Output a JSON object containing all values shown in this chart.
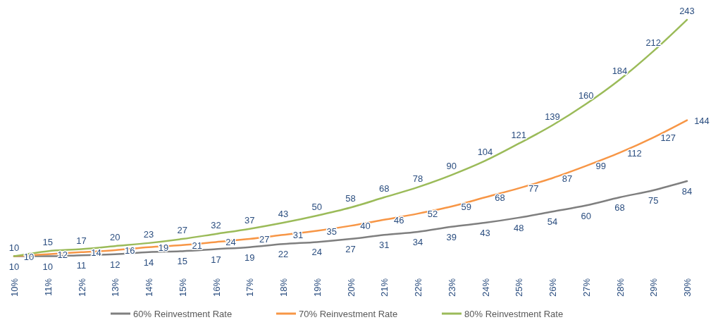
{
  "chart_data": {
    "type": "line",
    "categories": [
      "10%",
      "11%",
      "12%",
      "13%",
      "14%",
      "15%",
      "16%",
      "17%",
      "18%",
      "19%",
      "20%",
      "21%",
      "22%",
      "23%",
      "24%",
      "25%",
      "26%",
      "27%",
      "28%",
      "29%",
      "30%"
    ],
    "series": [
      {
        "name": "60% Reinvestment Rate",
        "color": "#7f7f7f",
        "values": [
          10,
          10,
          11,
          12,
          14,
          15,
          17,
          19,
          22,
          24,
          27,
          31,
          34,
          39,
          43,
          48,
          54,
          60,
          68,
          75,
          84
        ]
      },
      {
        "name": "70% Reinvestment Rate",
        "color": "#f79646",
        "values": [
          10,
          12,
          14,
          16,
          19,
          21,
          24,
          27,
          31,
          35,
          40,
          46,
          52,
          59,
          68,
          77,
          87,
          99,
          112,
          127,
          144
        ]
      },
      {
        "name": "80% Reinvestment Rate",
        "color": "#9bbb59",
        "values": [
          10,
          15,
          17,
          20,
          23,
          27,
          32,
          37,
          43,
          50,
          58,
          68,
          78,
          90,
          104,
          121,
          139,
          160,
          184,
          212,
          243
        ]
      }
    ],
    "data_labels": true,
    "legend": "bottom",
    "marker": "none",
    "line_style": "solid",
    "grid": false
  }
}
